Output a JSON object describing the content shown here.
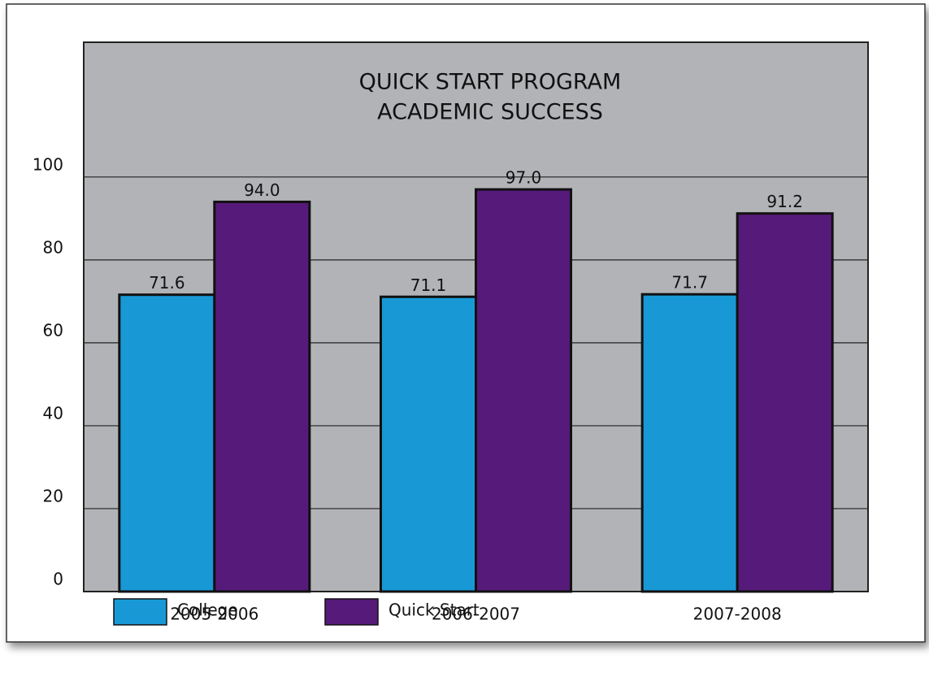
{
  "chart_data": {
    "type": "bar",
    "title": [
      "QUICK START PROGRAM",
      "ACADEMIC SUCCESS"
    ],
    "categories": [
      "2005-2006",
      "2006-2007",
      "2007-2008"
    ],
    "series": [
      {
        "name": "College",
        "color": "#1899d6",
        "values": [
          71.6,
          71.1,
          71.7
        ]
      },
      {
        "name": "Quick Start",
        "color": "#561a7a",
        "values": [
          94.0,
          97.0,
          91.2
        ],
        "value_labels": [
          "94.0",
          "97.0",
          "91.2"
        ]
      }
    ],
    "ylim": [
      0,
      132.5
    ],
    "yticks": [
      0,
      20,
      40,
      60,
      80,
      100
    ],
    "grid": true,
    "legend": "bottom"
  }
}
